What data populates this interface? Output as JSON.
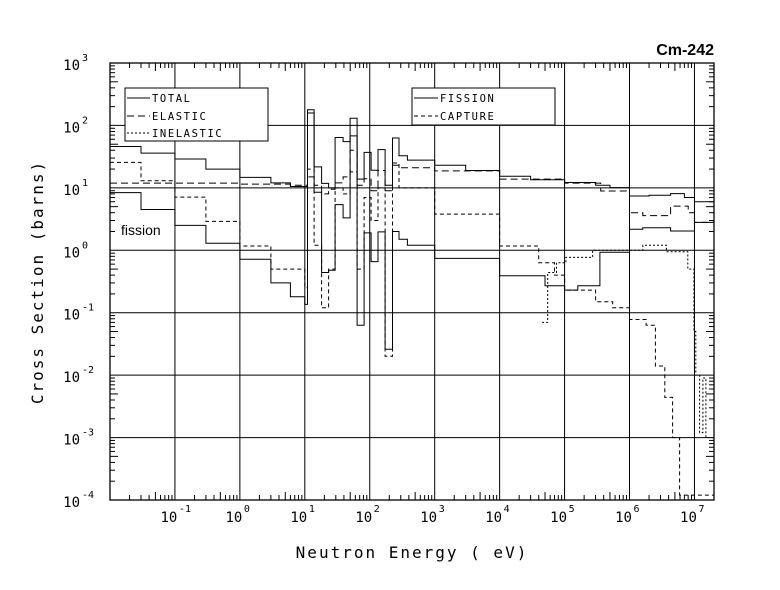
{
  "chart_data": {
    "type": "line",
    "title": "Cm-242",
    "xlabel": "Neutron Energy ( eV)",
    "ylabel": "Cross Section (barns)",
    "xscale": "log",
    "yscale": "log",
    "xlim": [
      0.01,
      20000000
    ],
    "ylim": [
      0.0001,
      1000
    ],
    "grid": true,
    "x_ticks": [
      {
        "base": "10",
        "exp": "-1",
        "value": 0.1
      },
      {
        "base": "10",
        "exp": "0",
        "value": 1
      },
      {
        "base": "10",
        "exp": "1",
        "value": 10
      },
      {
        "base": "10",
        "exp": "2",
        "value": 100
      },
      {
        "base": "10",
        "exp": "3",
        "value": 1000
      },
      {
        "base": "10",
        "exp": "4",
        "value": 10000
      },
      {
        "base": "10",
        "exp": "5",
        "value": 100000
      },
      {
        "base": "10",
        "exp": "6",
        "value": 1000000
      },
      {
        "base": "10",
        "exp": "7",
        "value": 10000000
      }
    ],
    "y_ticks": [
      {
        "base": "10",
        "exp": "-4",
        "value": 0.0001
      },
      {
        "base": "10",
        "exp": "-3",
        "value": 0.001
      },
      {
        "base": "10",
        "exp": "-2",
        "value": 0.01
      },
      {
        "base": "10",
        "exp": "-1",
        "value": 0.1
      },
      {
        "base": "10",
        "exp": "0",
        "value": 1
      },
      {
        "base": "10",
        "exp": "1",
        "value": 10
      },
      {
        "base": "10",
        "exp": "2",
        "value": 100
      },
      {
        "base": "10",
        "exp": "3",
        "value": 1000
      }
    ],
    "legends": [
      {
        "placement": "top-left",
        "entries": [
          "TOTAL",
          "ELASTIC",
          "INELASTIC"
        ]
      },
      {
        "placement": "top-center",
        "entries": [
          "FISSION",
          "CAPTURE"
        ]
      }
    ],
    "annotations": [
      "fission"
    ],
    "series": [
      {
        "name": "TOTAL",
        "style": "solid",
        "points": [
          [
            0.01,
            46
          ],
          [
            0.03,
            36
          ],
          [
            0.1,
            29
          ],
          [
            0.3,
            20
          ],
          [
            1,
            14.7
          ],
          [
            3,
            12
          ],
          [
            6,
            10.5
          ],
          [
            11,
            178
          ],
          [
            13.9,
            21.7
          ],
          [
            18.1,
            11.8
          ],
          [
            23.2,
            10
          ],
          [
            29.3,
            64
          ],
          [
            38.8,
            55
          ],
          [
            49.8,
            130
          ],
          [
            63.8,
            13.8
          ],
          [
            81.7,
            37
          ],
          [
            105,
            19.2
          ],
          [
            134,
            41
          ],
          [
            172,
            11
          ],
          [
            224,
            63
          ],
          [
            282,
            32.6
          ],
          [
            380,
            27.8
          ],
          [
            1000,
            23
          ],
          [
            3000,
            19
          ],
          [
            10000,
            15.3
          ],
          [
            30000,
            13.5
          ],
          [
            100000,
            12.2
          ],
          [
            300000,
            11
          ],
          [
            500000,
            10.1
          ],
          [
            1000000,
            7.4
          ],
          [
            2000000,
            7.6
          ],
          [
            4300000,
            8.1
          ],
          [
            7000000,
            7
          ],
          [
            10000000,
            6
          ],
          [
            20000000,
            6.1
          ]
        ]
      },
      {
        "name": "ELASTIC",
        "style": "long-dash",
        "points": [
          [
            0.01,
            11.9
          ],
          [
            1,
            11.5
          ],
          [
            6,
            11
          ],
          [
            11,
            15
          ],
          [
            13.9,
            11
          ],
          [
            18.1,
            8
          ],
          [
            23.2,
            9.5
          ],
          [
            29.3,
            12
          ],
          [
            38.8,
            15
          ],
          [
            49.8,
            40
          ],
          [
            63.8,
            11
          ],
          [
            81.7,
            14
          ],
          [
            105,
            9
          ],
          [
            134,
            19
          ],
          [
            172,
            9
          ],
          [
            224,
            23
          ],
          [
            282,
            21
          ],
          [
            1000,
            18.7
          ],
          [
            10000,
            13.8
          ],
          [
            100000,
            11.9
          ],
          [
            360000,
            8.9
          ],
          [
            1000000,
            4.0
          ],
          [
            1600000,
            3.6
          ],
          [
            4300000,
            5.1
          ],
          [
            8000000,
            4
          ],
          [
            10000000,
            2.8
          ],
          [
            20000000,
            3.0
          ]
        ]
      },
      {
        "name": "INELASTIC",
        "style": "dotted",
        "points": [
          [
            45000,
            0.07
          ],
          [
            55000,
            0.44
          ],
          [
            75000,
            0.63
          ],
          [
            105000,
            0.77
          ],
          [
            270000,
            1.0
          ],
          [
            1000000,
            1.0
          ],
          [
            1600000,
            1.2
          ],
          [
            3700000,
            0.95
          ],
          [
            7900000,
            0.5
          ],
          [
            9800000,
            0.05
          ],
          [
            10500000,
            0.01
          ],
          [
            12000000,
            0.0012
          ],
          [
            13500000,
            0.009
          ],
          [
            15000000,
            0.001
          ],
          [
            20000000,
            0.001
          ]
        ]
      },
      {
        "name": "FISSION",
        "style": "solid",
        "points": [
          [
            0.01,
            8.4
          ],
          [
            0.03,
            4.5
          ],
          [
            0.1,
            2.5
          ],
          [
            0.3,
            1.3
          ],
          [
            1,
            0.72
          ],
          [
            3,
            0.3
          ],
          [
            6,
            0.18
          ],
          [
            10,
            0.136
          ],
          [
            11,
            158
          ],
          [
            13.9,
            8.5
          ],
          [
            18.1,
            0.44
          ],
          [
            23.2,
            0.48
          ],
          [
            29.3,
            5.4
          ],
          [
            38.8,
            3.3
          ],
          [
            49.8,
            68
          ],
          [
            63.8,
            0.063
          ],
          [
            81.7,
            1.9
          ],
          [
            105,
            0.66
          ],
          [
            134,
            1.97
          ],
          [
            172,
            0.026
          ],
          [
            224,
            2.0
          ],
          [
            282,
            1.5
          ],
          [
            380,
            1.2
          ],
          [
            1000,
            0.74
          ],
          [
            10000,
            0.39
          ],
          [
            50000,
            0.27
          ],
          [
            100000,
            0.23
          ],
          [
            160000,
            0.27
          ],
          [
            350000,
            0.93
          ],
          [
            1000000,
            2.17
          ],
          [
            1600000,
            2.3
          ],
          [
            4300000,
            2.04
          ],
          [
            10000000,
            2.8
          ],
          [
            20000000,
            3.0
          ]
        ]
      },
      {
        "name": "CAPTURE",
        "style": "short-dash",
        "points": [
          [
            0.01,
            25.6
          ],
          [
            0.03,
            13
          ],
          [
            0.1,
            7.1
          ],
          [
            0.3,
            2.9
          ],
          [
            1,
            1.17
          ],
          [
            3,
            0.5
          ],
          [
            10,
            0.25
          ],
          [
            11,
            20
          ],
          [
            13.9,
            1.2
          ],
          [
            18.1,
            0.12
          ],
          [
            23.2,
            0.5
          ],
          [
            29.3,
            10
          ],
          [
            38.8,
            8
          ],
          [
            49.8,
            18
          ],
          [
            63.8,
            0.5
          ],
          [
            81.7,
            7
          ],
          [
            105,
            3
          ],
          [
            134,
            10
          ],
          [
            172,
            0.02
          ],
          [
            224,
            25
          ],
          [
            282,
            10
          ],
          [
            1000,
            3.8
          ],
          [
            10000,
            1.17
          ],
          [
            40000,
            0.63
          ],
          [
            70000,
            0.4
          ],
          [
            100000,
            0.23
          ],
          [
            300000,
            0.15
          ],
          [
            550000,
            0.12
          ],
          [
            1000000,
            0.078
          ],
          [
            1800000,
            0.063
          ],
          [
            2500000,
            0.014
          ],
          [
            3500000,
            0.0044
          ],
          [
            4600000,
            0.001
          ],
          [
            5900000,
            0.00012
          ]
        ]
      }
    ]
  }
}
